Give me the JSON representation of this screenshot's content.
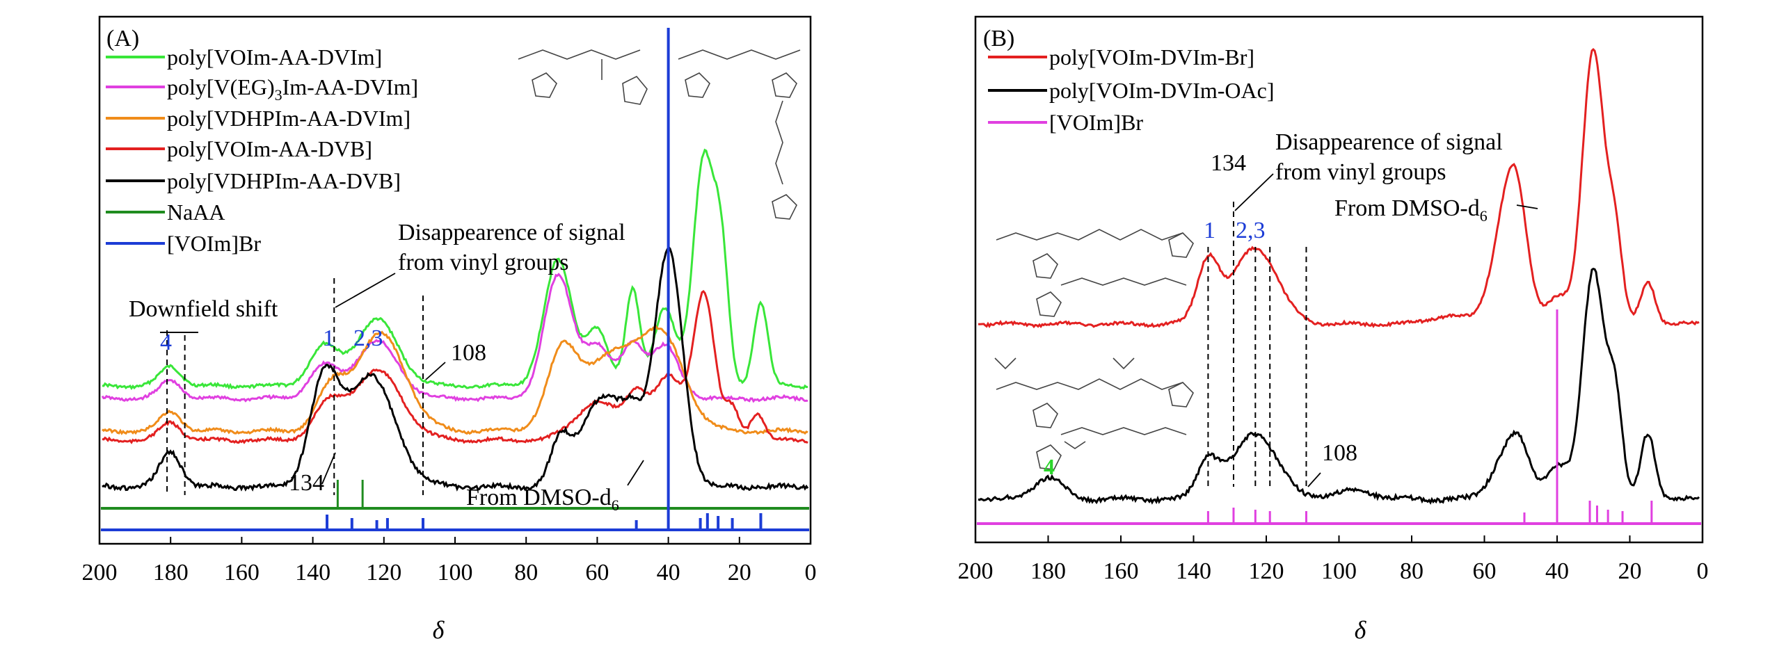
{
  "chart_data": [
    {
      "type": "line",
      "panel_label": "(A)",
      "xlabel": "δ",
      "xlim": [
        200,
        0
      ],
      "x_ticks": [
        200,
        180,
        160,
        140,
        120,
        100,
        80,
        60,
        40,
        20,
        0
      ],
      "x_axis_reversed": true,
      "y_axis": "stacked spectra, arbitrary intensity (no tick labels)",
      "grid": false,
      "legend_position": "top-left",
      "series": [
        {
          "name": "poly[VOIm-AA-DVIm]",
          "color": "#39e639",
          "peaks": [
            180,
            137,
            122,
            71,
            60,
            50,
            41,
            30,
            25,
            14
          ]
        },
        {
          "name": "poly[V(EG)3Im-AA-DVIm]",
          "color": "#e040e0",
          "peaks": [
            180,
            137,
            122,
            71,
            60,
            50,
            41
          ]
        },
        {
          "name": "poly[VDHPIm-AA-DVIm]",
          "color": "#f08c1a",
          "peaks": [
            180,
            135,
            121,
            70,
            55,
            41
          ]
        },
        {
          "name": "poly[VOIm-AA-DVB]",
          "color": "#e32020",
          "peaks": [
            180,
            136,
            122,
            60,
            49,
            40,
            30,
            22,
            15
          ]
        },
        {
          "name": "poly[VDHPIm-AA-DVB]",
          "color": "#000000",
          "peaks": [
            180,
            137,
            124,
            70,
            63,
            57,
            50,
            40
          ]
        },
        {
          "name": "NaAA",
          "color": "#1f8c1f",
          "sticks": [
            133,
            126
          ]
        },
        {
          "name": "[VOIm]Br",
          "color": "#1c3cd6",
          "sticks": [
            136,
            129,
            122,
            119,
            109,
            49,
            40,
            31,
            29,
            26,
            22,
            14
          ]
        }
      ],
      "annotations": [
        {
          "text": "Downfield shift"
        },
        {
          "text": "4"
        },
        {
          "text": "1"
        },
        {
          "text": "2,3"
        },
        {
          "text": "Disappearence of signal"
        },
        {
          "text": "from vinyl groups"
        },
        {
          "text": "108"
        },
        {
          "text": "134"
        },
        {
          "text": "From DMSO-d"
        }
      ]
    },
    {
      "type": "line",
      "panel_label": "(B)",
      "xlabel": "δ",
      "xlim": [
        200,
        0
      ],
      "x_ticks": [
        200,
        180,
        160,
        140,
        120,
        100,
        80,
        60,
        40,
        20,
        0
      ],
      "x_axis_reversed": true,
      "y_axis": "stacked spectra, arbitrary intensity (no tick labels)",
      "grid": false,
      "legend_position": "top-left",
      "series": [
        {
          "name": "poly[VOIm-DVIm-Br]",
          "color": "#e32020",
          "peaks": [
            136,
            123,
            70,
            54,
            51,
            40,
            30,
            24,
            15
          ]
        },
        {
          "name": "poly[VOIm-DVIm-OAc]",
          "color": "#000000",
          "peaks": [
            180,
            136,
            123,
            96,
            54,
            50,
            40,
            30,
            24,
            15
          ]
        },
        {
          "name": "[VOIm]Br",
          "color": "#e040e0",
          "sticks": [
            136,
            129,
            123,
            119,
            109,
            49,
            40,
            31,
            29,
            26,
            22,
            14
          ]
        }
      ],
      "annotations": [
        {
          "text": "134"
        },
        {
          "text": "Disappearence of signal"
        },
        {
          "text": "from vinyl groups"
        },
        {
          "text": "From DMSO-d"
        },
        {
          "text": "1"
        },
        {
          "text": "2,3"
        },
        {
          "text": "108"
        },
        {
          "text": "4"
        }
      ]
    }
  ],
  "panelA": {
    "label": "(A)",
    "legend": [
      "poly[VOIm-AA-DVIm]",
      "poly[V(EG)",
      "Im-AA-DVIm]",
      "poly[VDHPIm-AA-DVIm]",
      "poly[VOIm-AA-DVB]",
      "poly[VDHPIm-AA-DVB]",
      "NaAA",
      "[VOIm]Br"
    ],
    "legend_sub": "3",
    "ann_downfield": "Downfield shift",
    "ann_4": "4",
    "ann_1": "1",
    "ann_23": "2,3",
    "ann_disappear_1": "Disappearence of signal",
    "ann_disappear_2": "from vinyl groups",
    "ann_108": "108",
    "ann_134": "134",
    "ann_dmso": "From DMSO-d",
    "ann_dmso_sub": "6",
    "xlabel": "δ",
    "ticks": [
      "200",
      "180",
      "160",
      "140",
      "120",
      "100",
      "80",
      "60",
      "40",
      "20",
      "0"
    ]
  },
  "panelB": {
    "label": "(B)",
    "legend": [
      "poly[VOIm-DVIm-Br]",
      "poly[VOIm-DVIm-OAc]",
      "[VOIm]Br"
    ],
    "ann_134": "134",
    "ann_disappear_1": "Disappearence of signal",
    "ann_disappear_2": "from vinyl groups",
    "ann_dmso": "From DMSO-d",
    "ann_dmso_sub": "6",
    "ann_1": "1",
    "ann_23": "2,3",
    "ann_108": "108",
    "ann_4": "4",
    "xlabel": "δ",
    "ticks": [
      "200",
      "180",
      "160",
      "140",
      "120",
      "100",
      "80",
      "60",
      "40",
      "20",
      "0"
    ]
  },
  "colors": {
    "green": "#39e639",
    "magenta": "#e040e0",
    "orange": "#f08c1a",
    "red": "#e32020",
    "black": "#000000",
    "dark_green": "#1f8c1f",
    "blue": "#1c3cd6",
    "annotation_blue": "#1c3cd6",
    "annotation_green": "#2bd62b"
  }
}
